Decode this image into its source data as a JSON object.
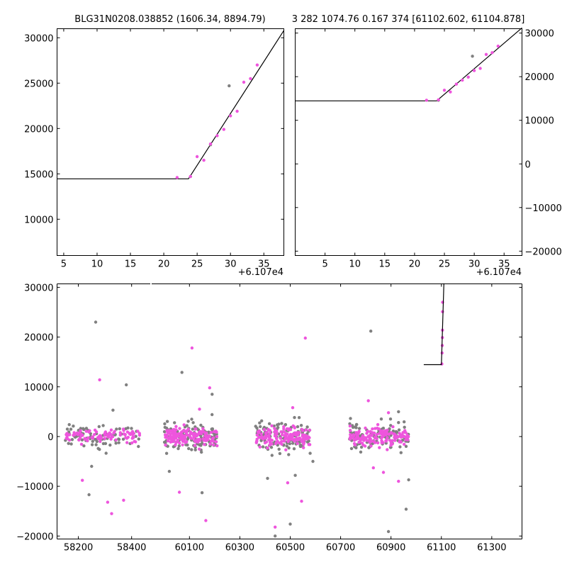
{
  "colors": {
    "magenta": "#ee55dd",
    "gray": "#808080",
    "model": "#000000"
  },
  "chart_data": [
    {
      "type": "scatter",
      "panel": "zoom-left",
      "title": "BLG31N0208.038852 (1606.34, 8894.79)",
      "offset_label": "+6.107e4",
      "x_offset": 61070,
      "xlim": [
        4,
        38
      ],
      "ylim": [
        6000,
        31000
      ],
      "xticks": [
        5,
        10,
        15,
        20,
        25,
        30,
        35
      ],
      "yticks": [
        10000,
        15000,
        20000,
        25000,
        30000
      ],
      "xtick_labels": [
        "5",
        "10",
        "15",
        "20",
        "25",
        "30",
        "35"
      ],
      "ytick_labels": [
        "10000",
        "15000",
        "20000",
        "25000",
        "30000"
      ],
      "ytick_side": "left",
      "series": [
        {
          "color": "magenta",
          "x": [
            22,
            24,
            25,
            26,
            27,
            28,
            29,
            30,
            31,
            32,
            33,
            34
          ],
          "y": [
            14600,
            14700,
            16900,
            16500,
            18300,
            19200,
            19900,
            21400,
            21900,
            25100,
            25500,
            27000
          ]
        },
        {
          "color": "gray",
          "x": [
            24,
            27,
            29.8
          ],
          "y": [
            14700,
            18200,
            24700
          ]
        }
      ],
      "model": {
        "x": [
          4,
          23.7,
          38
        ],
        "y": [
          14450,
          14450,
          30800
        ]
      }
    },
    {
      "type": "scatter",
      "panel": "zoom-right",
      "title": "3 282 1074.76 0.167 374 [61102.602, 61104.878]",
      "offset_label": "+6.107e4",
      "x_offset": 61070,
      "xlim": [
        0,
        38
      ],
      "ylim": [
        -21000,
        31000
      ],
      "xticks": [
        5,
        10,
        15,
        20,
        25,
        30,
        35
      ],
      "yticks": [
        -20000,
        -10000,
        0,
        10000,
        20000,
        30000
      ],
      "xtick_labels": [
        "5",
        "10",
        "15",
        "20",
        "25",
        "30",
        "35"
      ],
      "ytick_labels": [
        "−20000",
        "−10000",
        "0",
        "10000",
        "20000",
        "30000"
      ],
      "ytick_side": "right",
      "series": [
        {
          "color": "magenta",
          "x": [
            22,
            24,
            25,
            26,
            27,
            28,
            29,
            30,
            31,
            32,
            33,
            34
          ],
          "y": [
            14600,
            14700,
            16900,
            16500,
            18300,
            19200,
            19900,
            21400,
            21900,
            25100,
            25500,
            27000
          ]
        },
        {
          "color": "gray",
          "x": [
            24,
            29.7
          ],
          "y": [
            14600,
            24700
          ]
        }
      ],
      "model": {
        "x": [
          0,
          23.7,
          38
        ],
        "y": [
          14450,
          14450,
          31200
        ]
      }
    },
    {
      "type": "scatter",
      "panel": "full-light-curve",
      "title": "",
      "xlim": [
        58120,
        61420
      ],
      "ylim": [
        -20600,
        30700
      ],
      "broken_axis_gap": [
        58470,
        59950
      ],
      "xticks": [
        58200,
        58400,
        60100,
        60300,
        60500,
        60700,
        60900,
        61100,
        61300
      ],
      "yticks": [
        -20000,
        -10000,
        0,
        10000,
        20000,
        30000
      ],
      "xtick_labels": [
        "58200",
        "58400",
        "60100",
        "60300",
        "60500",
        "60700",
        "60900",
        "61100",
        "61300"
      ],
      "ytick_labels": [
        "−20000",
        "−10000",
        "0",
        "10000",
        "20000",
        "30000"
      ],
      "seasons": [
        {
          "start": 58150,
          "end": 58430,
          "n_magenta": 95,
          "n_gray": 80,
          "sigma_magenta": 650,
          "sigma_gray": 1200
        },
        {
          "start": 60000,
          "end": 60210,
          "n_magenta": 150,
          "n_gray": 120,
          "sigma_magenta": 850,
          "sigma_gray": 1500
        },
        {
          "start": 60360,
          "end": 60580,
          "n_magenta": 150,
          "n_gray": 120,
          "sigma_magenta": 900,
          "sigma_gray": 1600
        },
        {
          "start": 60735,
          "end": 60970,
          "n_magenta": 150,
          "n_gray": 110,
          "sigma_magenta": 900,
          "sigma_gray": 1500
        }
      ],
      "outliers": {
        "magenta": {
          "x": [
            58215,
            58280,
            58310,
            58325,
            58370,
            60060,
            60110,
            60140,
            60180,
            60165,
            60440,
            60490,
            60510,
            60560,
            60545,
            60810,
            60830,
            60870,
            60890,
            60930
          ],
          "y": [
            -8800,
            11400,
            -13200,
            -15500,
            -12800,
            -11200,
            17800,
            5500,
            9800,
            -16900,
            -18200,
            -9300,
            5800,
            19800,
            -13000,
            7200,
            -6300,
            -7200,
            4800,
            -9000
          ]
        },
        "gray": {
          "x": [
            58250,
            58265,
            58240,
            58380,
            58330,
            60020,
            60070,
            60150,
            60190,
            60410,
            60440,
            60500,
            60520,
            60590,
            60820,
            60890,
            60960,
            60970,
            60930
          ],
          "y": [
            -6000,
            23000,
            -11700,
            10400,
            5300,
            -7000,
            12900,
            -11300,
            8500,
            -8400,
            -20000,
            -17600,
            -7800,
            -5000,
            21200,
            -19100,
            -14600,
            -8700,
            5000
          ]
        }
      },
      "event_points": {
        "x": [
          61102,
          61103,
          61103.5,
          61104,
          61104.3,
          61104.6,
          61105
        ],
        "y": [
          14600,
          16800,
          18300,
          19900,
          21400,
          25100,
          27000
        ]
      },
      "model": {
        "x": [
          61030,
          61100,
          61110
        ],
        "y": [
          14450,
          14450,
          30800
        ]
      }
    }
  ]
}
